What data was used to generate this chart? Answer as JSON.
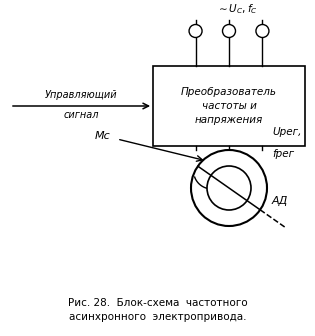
{
  "background_color": "#ffffff",
  "fig_width": 3.15,
  "fig_height": 3.36,
  "dpi": 100,
  "caption_line1": "Рис. 28.  Блок-схема  частотного",
  "caption_line2": "асинхронного  электропривода.",
  "box_text": "Преобразователь\nчастоты и\nнапряжения",
  "motor_label": "АД",
  "mc_label": "Мс",
  "ureg_label": "Uрег,",
  "freg_label": "fрег"
}
